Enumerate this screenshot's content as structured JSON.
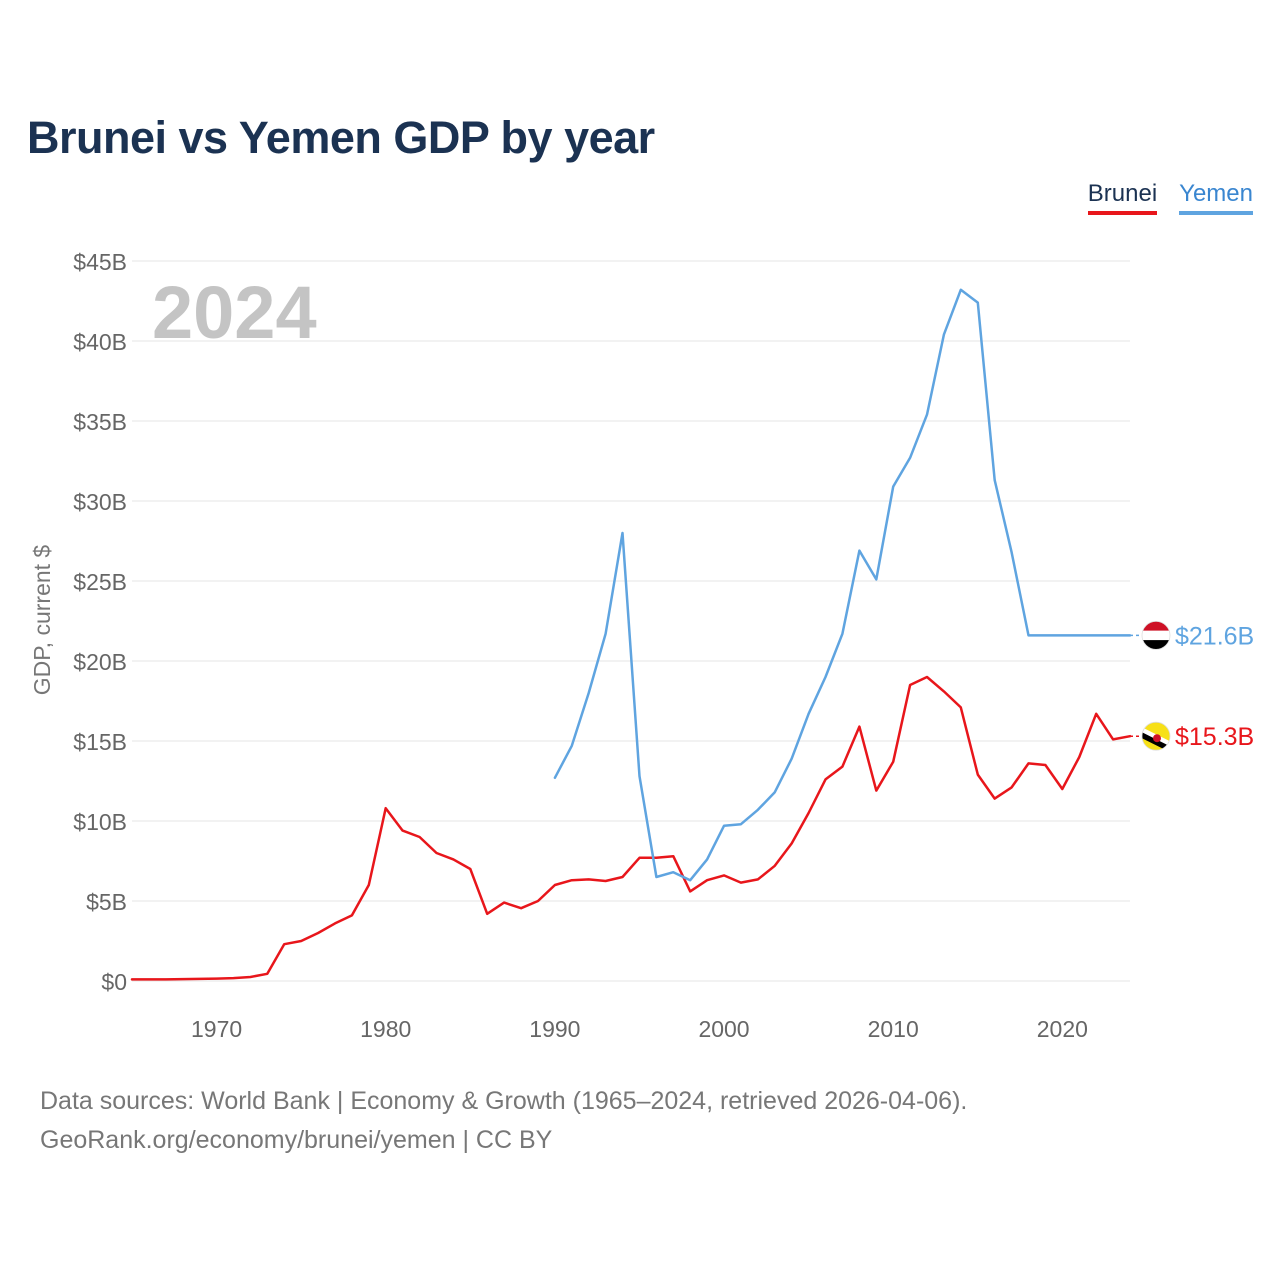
{
  "chart_data": {
    "type": "line",
    "title": "Brunei vs Yemen GDP by year",
    "ylabel": "GDP, current $",
    "xlabel": "",
    "year_label": "2024",
    "xlim": [
      1965,
      2024
    ],
    "ylim": [
      0,
      45
    ],
    "y_unit": "billion USD",
    "x_ticks": [
      1970,
      1980,
      1990,
      2000,
      2010,
      2020
    ],
    "y_ticks": [
      {
        "value": 0,
        "label": "$0"
      },
      {
        "value": 5,
        "label": "$5B"
      },
      {
        "value": 10,
        "label": "$10B"
      },
      {
        "value": 15,
        "label": "$15B"
      },
      {
        "value": 20,
        "label": "$20B"
      },
      {
        "value": 25,
        "label": "$25B"
      },
      {
        "value": 30,
        "label": "$30B"
      },
      {
        "value": 35,
        "label": "$35B"
      },
      {
        "value": 40,
        "label": "$40B"
      },
      {
        "value": 45,
        "label": "$45B"
      }
    ],
    "grid": true,
    "legend_position": "top-right",
    "series": [
      {
        "name": "Brunei",
        "color": "#e8161b",
        "end_label": "$15.3B",
        "x": [
          1965,
          1966,
          1967,
          1968,
          1969,
          1970,
          1971,
          1972,
          1973,
          1974,
          1975,
          1976,
          1977,
          1978,
          1979,
          1980,
          1981,
          1982,
          1983,
          1984,
          1985,
          1986,
          1987,
          1988,
          1989,
          1990,
          1991,
          1992,
          1993,
          1994,
          1995,
          1996,
          1997,
          1998,
          1999,
          2000,
          2001,
          2002,
          2003,
          2004,
          2005,
          2006,
          2007,
          2008,
          2009,
          2010,
          2011,
          2012,
          2013,
          2014,
          2015,
          2016,
          2017,
          2018,
          2019,
          2020,
          2021,
          2022,
          2023,
          2024
        ],
        "values": [
          0.1,
          0.1,
          0.1,
          0.12,
          0.13,
          0.15,
          0.18,
          0.25,
          0.45,
          2.3,
          2.5,
          3.0,
          3.6,
          4.1,
          6.0,
          10.8,
          9.4,
          9.0,
          8.0,
          7.6,
          7.0,
          4.2,
          4.9,
          4.55,
          5.0,
          6.0,
          6.3,
          6.35,
          6.25,
          6.5,
          7.7,
          7.7,
          7.8,
          5.6,
          6.3,
          6.6,
          6.15,
          6.35,
          7.2,
          8.6,
          10.5,
          12.6,
          13.4,
          15.9,
          11.9,
          13.7,
          18.5,
          19.0,
          18.1,
          17.1,
          12.9,
          11.4,
          12.1,
          13.6,
          13.5,
          12.0,
          14.0,
          16.7,
          15.1,
          15.3
        ]
      },
      {
        "name": "Yemen",
        "color": "#5fa4e0",
        "end_label": "$21.6B",
        "x": [
          1990,
          1991,
          1992,
          1993,
          1994,
          1995,
          1996,
          1997,
          1998,
          1999,
          2000,
          2001,
          2002,
          2003,
          2004,
          2005,
          2006,
          2007,
          2008,
          2009,
          2010,
          2011,
          2012,
          2013,
          2014,
          2015,
          2016,
          2017,
          2018,
          2019,
          2020,
          2021,
          2022,
          2023,
          2024
        ],
        "values": [
          12.7,
          14.7,
          18.0,
          21.7,
          28.0,
          12.8,
          6.5,
          6.8,
          6.3,
          7.6,
          9.7,
          9.8,
          10.7,
          11.8,
          13.9,
          16.7,
          19.0,
          21.7,
          26.9,
          25.1,
          30.9,
          32.7,
          35.4,
          40.4,
          43.2,
          42.4,
          31.3,
          26.8,
          21.6,
          21.6,
          21.6,
          21.6,
          21.6,
          21.6,
          21.6
        ]
      }
    ]
  },
  "legend": {
    "brunei_label": "Brunei",
    "yemen_label": "Yemen"
  },
  "footer": {
    "line1": "Data sources: World Bank | Economy & Growth (1965–2024, retrieved 2026-04-06).",
    "line2": "GeoRank.org/economy/brunei/yemen | CC BY"
  }
}
